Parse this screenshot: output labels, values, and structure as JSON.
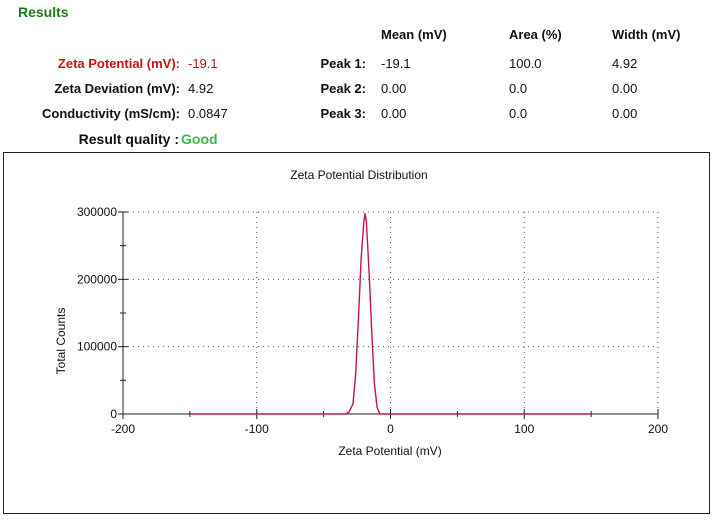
{
  "results": {
    "title": "Results",
    "zeta_potential": {
      "label": "Zeta Potential (mV):",
      "value": "-19.1"
    },
    "zeta_deviation": {
      "label": "Zeta Deviation (mV):",
      "value": "4.92"
    },
    "conductivity": {
      "label": "Conductivity (mS/cm):",
      "value": "0.0847"
    },
    "quality": {
      "label": "Result quality :",
      "value": "Good"
    }
  },
  "peaks_table": {
    "headers": [
      "Mean (mV)",
      "Area (%)",
      "Width (mV)"
    ],
    "rows": [
      {
        "label": "Peak 1:",
        "mean": "-19.1",
        "area": "100.0",
        "width": "4.92"
      },
      {
        "label": "Peak 2:",
        "mean": "0.00",
        "area": "0.0",
        "width": "0.00"
      },
      {
        "label": "Peak 3:",
        "mean": "0.00",
        "area": "0.0",
        "width": "0.00"
      }
    ]
  },
  "colors": {
    "title_green": "#1a7a1a",
    "alert_red": "#cc1111",
    "good_green": "#3cb84a",
    "curve": "#c0145a"
  },
  "chart_data": {
    "type": "line",
    "title": "Zeta Potential Distribution",
    "xlabel": "Zeta Potential (mV)",
    "ylabel": "Total Counts",
    "xlim": [
      -200,
      200
    ],
    "ylim": [
      0,
      300000
    ],
    "xticks": [
      -200,
      -100,
      0,
      100,
      200
    ],
    "yticks": [
      0,
      100000,
      200000,
      300000
    ],
    "grid": true,
    "series": [
      {
        "x": [
          -150,
          -34,
          -31,
          -28,
          -26,
          -24,
          -22,
          -20,
          -19.1,
          -18,
          -16,
          -14,
          -12,
          -10,
          -8,
          0,
          150
        ],
        "y": [
          0,
          0,
          3000,
          15000,
          60000,
          140000,
          230000,
          285000,
          298000,
          285000,
          210000,
          120000,
          45000,
          10000,
          0,
          0,
          0
        ]
      }
    ]
  }
}
